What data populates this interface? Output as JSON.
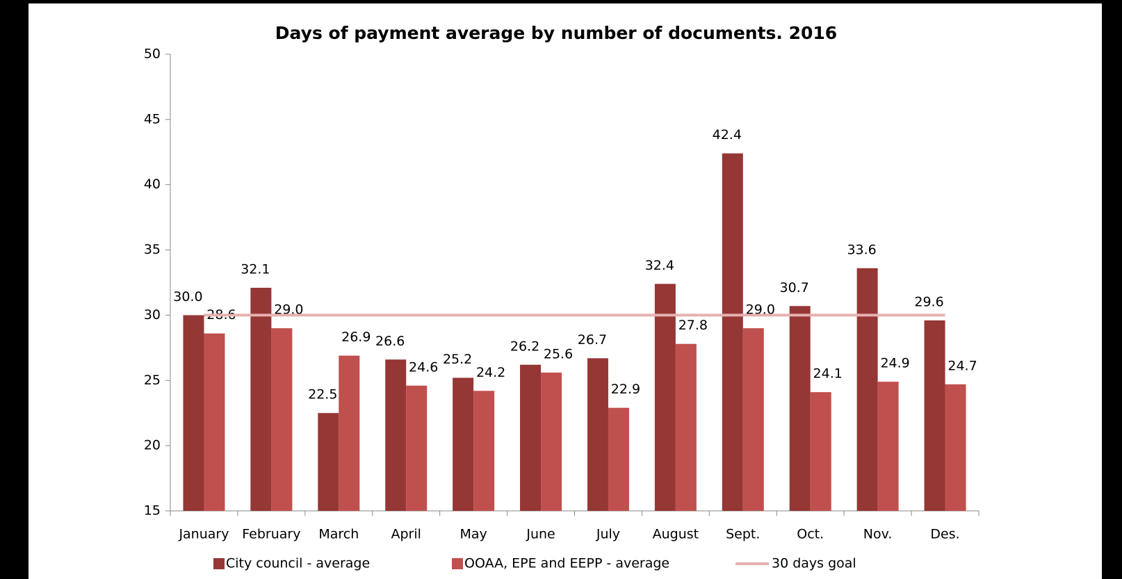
{
  "chart_data": {
    "type": "bar",
    "title": "Days of payment average by number of documents. 2016",
    "categories": [
      "January",
      "February",
      "March",
      "April",
      "May",
      "June",
      "July",
      "August",
      "Sept.",
      "Oct.",
      "Nov.",
      "Des."
    ],
    "series": [
      {
        "name": "City council - average",
        "color": "#953735",
        "values": [
          30.0,
          32.1,
          22.5,
          26.6,
          25.2,
          26.2,
          26.7,
          32.4,
          42.4,
          30.7,
          33.6,
          29.6
        ],
        "value_labels": [
          "30.0",
          "32.1",
          "22.5",
          "26.6",
          "25.2",
          "26.2",
          "26.7",
          "32.4",
          "42.4",
          "30.7",
          "33.6",
          "29.6"
        ]
      },
      {
        "name": "OOAA, EPE and EEPP - average",
        "color": "#c0504d",
        "values": [
          28.6,
          29.0,
          26.9,
          24.6,
          24.2,
          25.6,
          22.9,
          27.8,
          29.0,
          24.1,
          24.9,
          24.7
        ],
        "value_labels": [
          "28.6",
          "29.0",
          "26.9",
          "24.6",
          "24.2",
          "25.6",
          "22.9",
          "27.8",
          "29.0",
          "24.1",
          "24.9",
          "24.7"
        ]
      },
      {
        "name": "30 days goal",
        "color": "#e6b0b0",
        "type": "line",
        "values": [
          30,
          30,
          30,
          30,
          30,
          30,
          30,
          30,
          30,
          30,
          30,
          30
        ]
      }
    ],
    "ylim": [
      15,
      50
    ],
    "yticks": [
      15,
      20,
      25,
      30,
      35,
      40,
      45,
      50
    ]
  }
}
